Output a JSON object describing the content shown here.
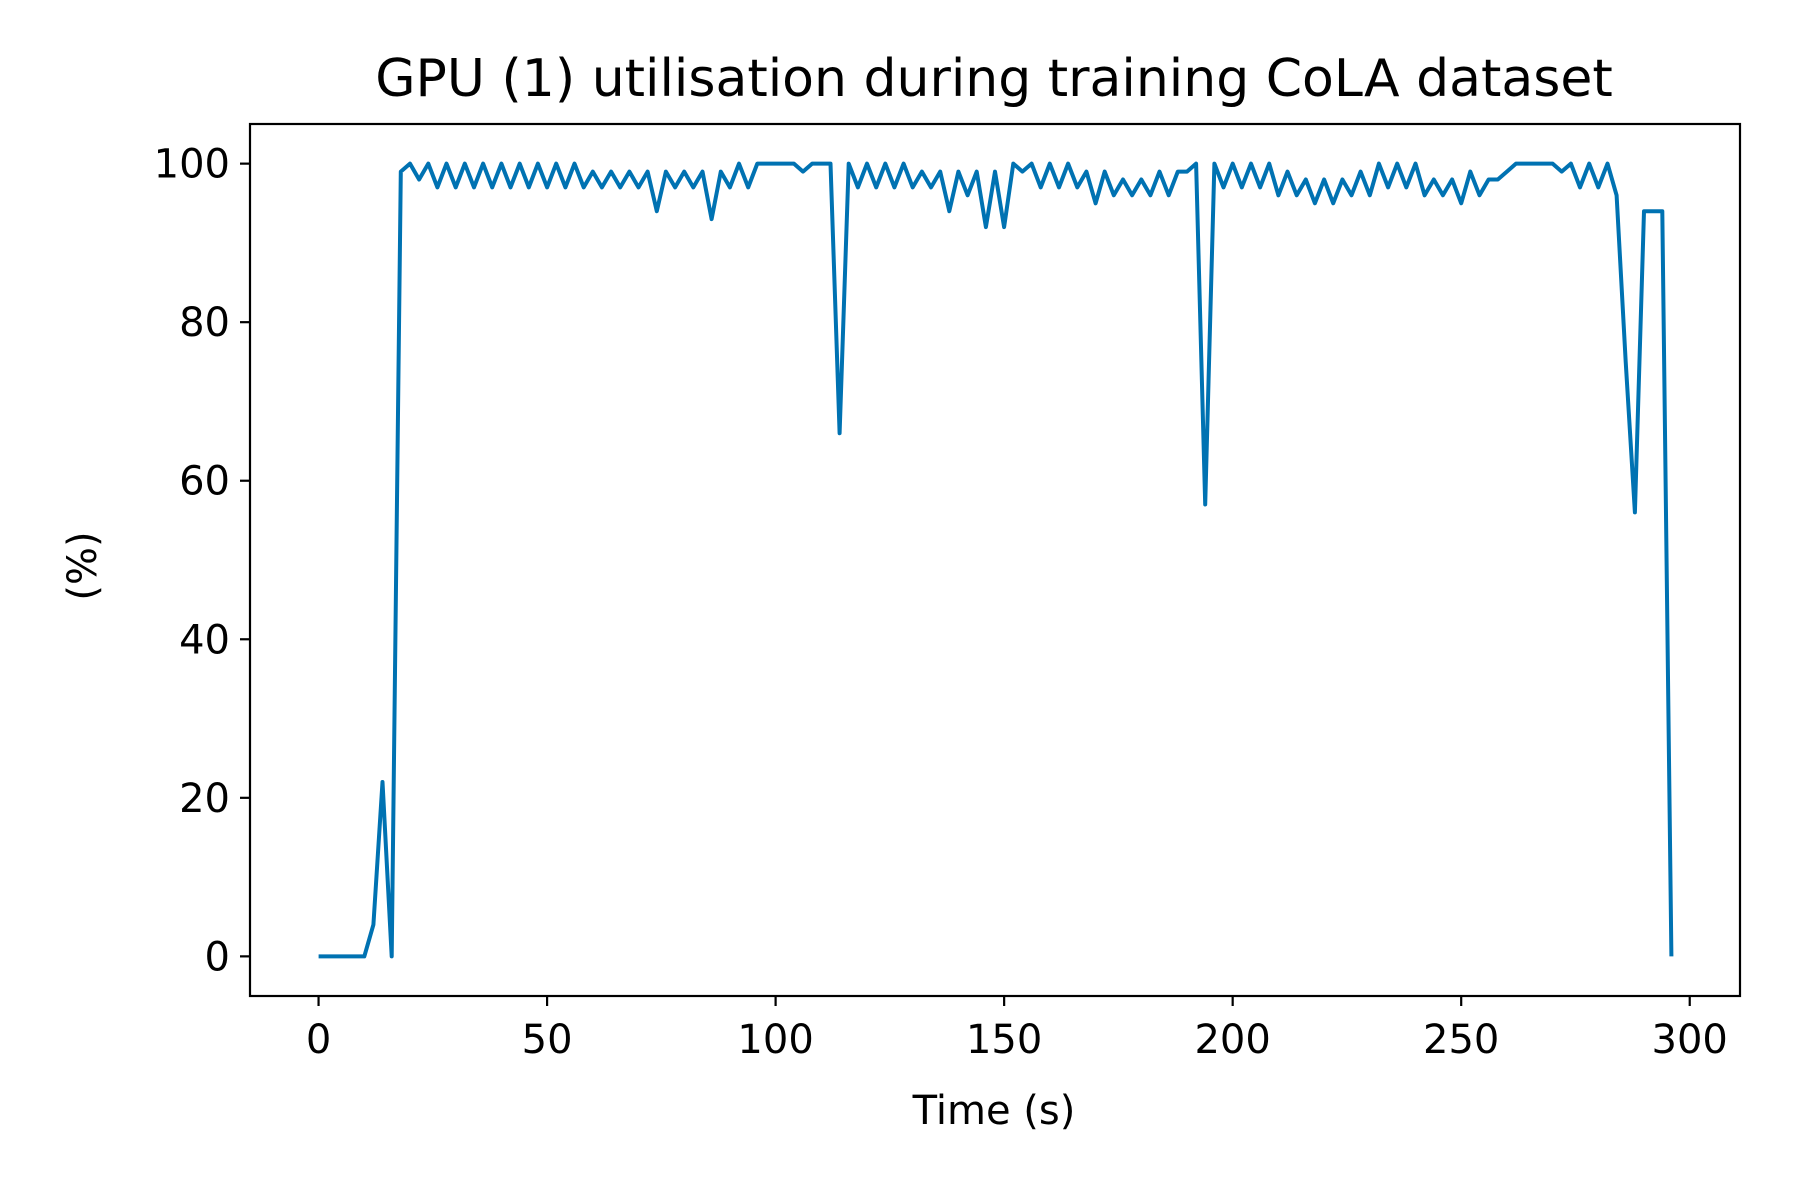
{
  "chart_data": {
    "type": "line",
    "title": "GPU (1) utilisation during training CoLA dataset",
    "xlabel": "Time (s)",
    "ylabel": "(%)",
    "xlim": [
      -15,
      311
    ],
    "ylim": [
      -5,
      105
    ],
    "xticks": [
      0,
      50,
      100,
      150,
      200,
      250,
      300
    ],
    "yticks": [
      0,
      20,
      40,
      60,
      80,
      100
    ],
    "grid": false,
    "series": [
      {
        "color": "#0072b2",
        "x": [
          0,
          2,
          4,
          6,
          8,
          10,
          12,
          14,
          16,
          18,
          20,
          22,
          24,
          26,
          28,
          30,
          32,
          34,
          36,
          38,
          40,
          42,
          44,
          46,
          48,
          50,
          52,
          54,
          56,
          58,
          60,
          62,
          64,
          66,
          68,
          70,
          72,
          74,
          76,
          78,
          80,
          82,
          84,
          86,
          88,
          90,
          92,
          94,
          96,
          98,
          100,
          102,
          104,
          106,
          108,
          110,
          112,
          114,
          116,
          118,
          120,
          122,
          124,
          126,
          128,
          130,
          132,
          134,
          136,
          138,
          140,
          142,
          144,
          146,
          148,
          150,
          152,
          154,
          156,
          158,
          160,
          162,
          164,
          166,
          168,
          170,
          172,
          174,
          176,
          178,
          180,
          182,
          184,
          186,
          188,
          190,
          192,
          194,
          196,
          198,
          200,
          202,
          204,
          206,
          208,
          210,
          212,
          214,
          216,
          218,
          220,
          222,
          224,
          226,
          228,
          230,
          232,
          234,
          236,
          238,
          240,
          242,
          244,
          246,
          248,
          250,
          252,
          254,
          256,
          258,
          260,
          262,
          264,
          266,
          268,
          270,
          272,
          274,
          276,
          278,
          280,
          282,
          284,
          286,
          288,
          290,
          292,
          294,
          296
        ],
        "y": [
          0,
          0,
          0,
          0,
          0,
          0,
          4,
          22,
          0,
          99,
          100,
          98,
          100,
          97,
          100,
          97,
          100,
          97,
          100,
          97,
          100,
          97,
          100,
          97,
          100,
          97,
          100,
          97,
          100,
          97,
          99,
          97,
          99,
          97,
          99,
          97,
          99,
          94,
          99,
          97,
          99,
          97,
          99,
          93,
          99,
          97,
          100,
          97,
          100,
          100,
          100,
          100,
          100,
          99,
          100,
          100,
          100,
          66,
          100,
          97,
          100,
          97,
          100,
          97,
          100,
          97,
          99,
          97,
          99,
          94,
          99,
          96,
          99,
          92,
          99,
          92,
          100,
          99,
          100,
          97,
          100,
          97,
          100,
          97,
          99,
          95,
          99,
          96,
          98,
          96,
          98,
          96,
          99,
          96,
          99,
          99,
          100,
          57,
          100,
          97,
          100,
          97,
          100,
          97,
          100,
          96,
          99,
          96,
          98,
          95,
          98,
          95,
          98,
          96,
          99,
          96,
          100,
          97,
          100,
          97,
          100,
          96,
          98,
          96,
          98,
          95,
          99,
          96,
          98,
          98,
          99,
          100,
          100,
          100,
          100,
          100,
          99,
          100,
          97,
          100,
          97,
          100,
          96,
          75,
          56,
          94,
          94,
          94,
          0
        ]
      }
    ]
  }
}
